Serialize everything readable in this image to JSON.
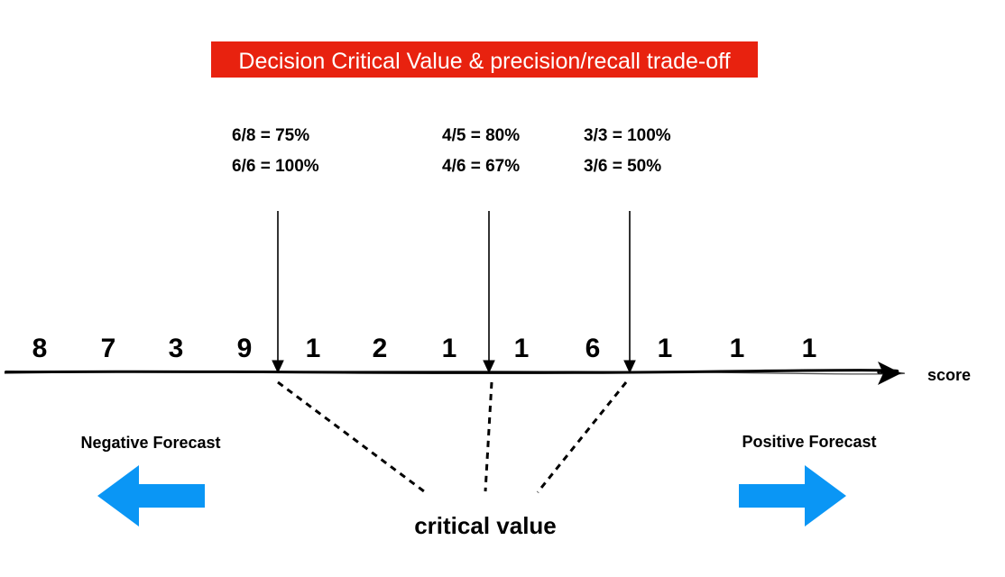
{
  "title": {
    "text": "Decision Critical Value & precision/recall trade-off",
    "background_color": "#e8220f",
    "text_color": "#ffffff"
  },
  "thresholds": [
    {
      "precision": "6/8 = 75%",
      "recall": "6/6 = 100%"
    },
    {
      "precision": "4/5 = 80%",
      "recall": "4/6 = 67%"
    },
    {
      "precision": "3/3 = 100%",
      "recall": "3/6 = 50%"
    }
  ],
  "scores": [
    "8",
    "7",
    "3",
    "9",
    "1",
    "2",
    "1",
    "1",
    "6",
    "1",
    "1",
    "1"
  ],
  "axis": {
    "label": "score"
  },
  "negative": {
    "label": "Negative Forecast",
    "arrow_icon": "arrow-left-icon"
  },
  "positive": {
    "label": "Positive Forecast",
    "arrow_icon": "arrow-right-icon"
  },
  "critical_value": {
    "label": "critical value"
  },
  "colors": {
    "arrow": "#0a96f5",
    "line": "#000000"
  }
}
